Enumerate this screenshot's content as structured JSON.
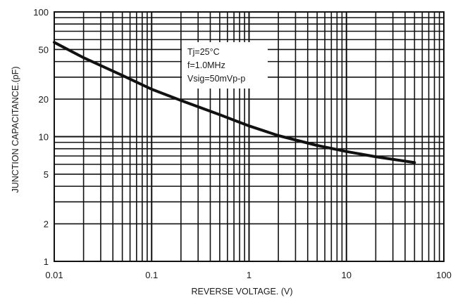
{
  "chart_data": {
    "type": "line",
    "title": "",
    "xlabel": "REVERSE VOLTAGE. (V)",
    "ylabel": "JUNCTION CAPACITANCE.(pF)",
    "x_scale": "log",
    "y_scale": "log",
    "xlim": [
      0.01,
      100
    ],
    "ylim": [
      1,
      100
    ],
    "grid": true,
    "x_tick_labels": [
      "0.01",
      "0.1",
      "1",
      "10",
      "100"
    ],
    "y_tick_labels": [
      "100",
      "50",
      "20",
      "10",
      "5",
      "2",
      "1"
    ],
    "annotations": [
      "Tj=25°C",
      "f=1.0MHz",
      "Vsig=50mVp-p"
    ],
    "series": [
      {
        "x": [
          0.01,
          0.02,
          0.05,
          0.1,
          0.2,
          0.5,
          1,
          2,
          5,
          10,
          20,
          50
        ],
        "y": [
          57,
          43,
          31,
          24,
          19.5,
          15,
          12.2,
          10.2,
          8.5,
          7.6,
          6.9,
          6.2
        ]
      }
    ]
  }
}
